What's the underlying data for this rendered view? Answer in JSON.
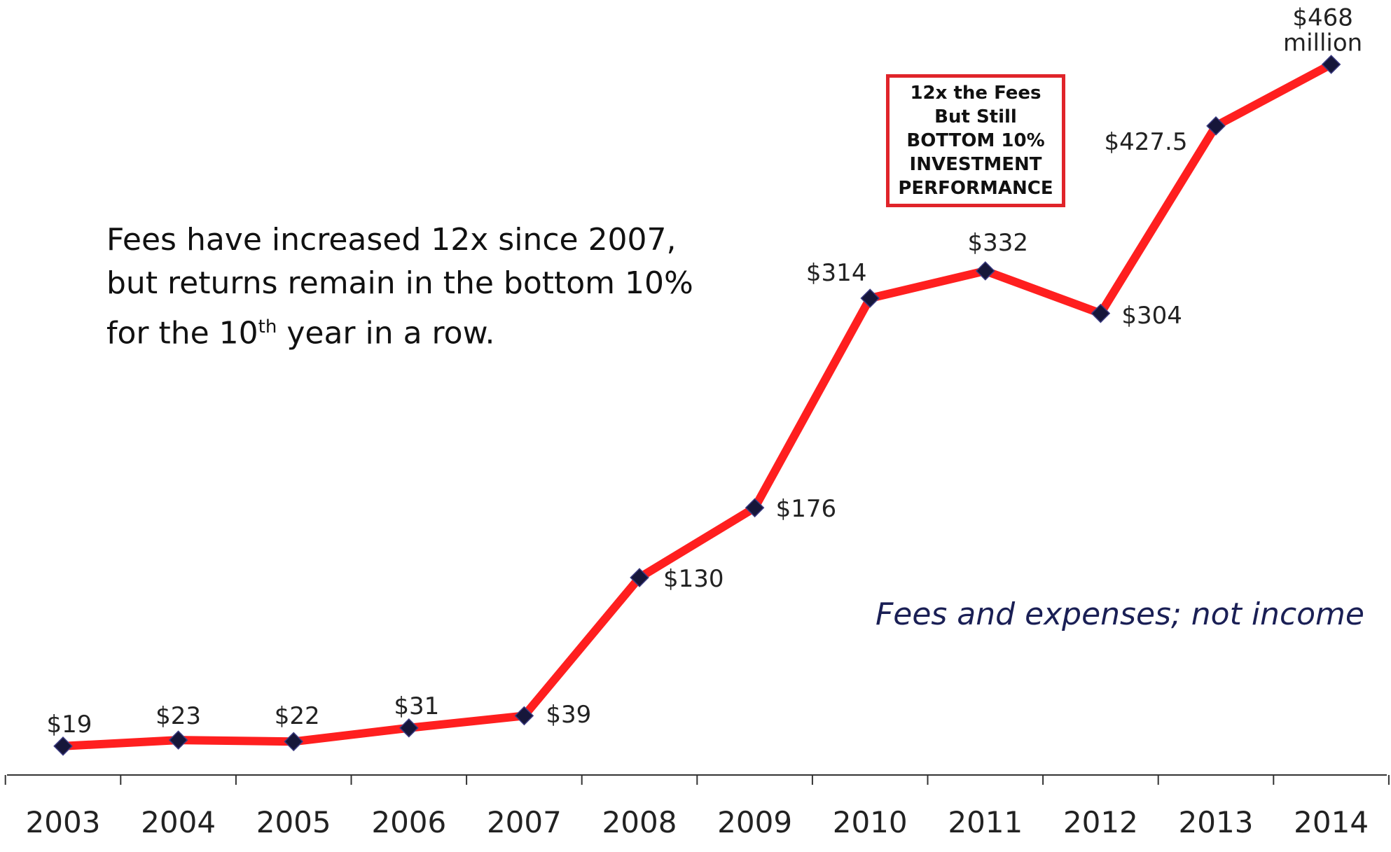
{
  "chart_data": {
    "type": "line",
    "categories": [
      "2003",
      "2004",
      "2005",
      "2006",
      "2007",
      "2008",
      "2009",
      "2010",
      "2011",
      "2012",
      "2013",
      "2014"
    ],
    "series": [
      {
        "name": "Fees",
        "color": "#ff1f1f",
        "marker_color": "#16163a",
        "values": [
          19,
          23,
          22,
          31,
          39,
          130,
          176,
          314,
          332,
          304,
          427.5,
          468
        ],
        "value_labels": [
          "$19",
          "$23",
          "$22",
          "$31",
          "$39",
          "$130",
          "$176",
          "$314",
          "$332",
          "$304",
          "$427.5",
          "$468 million"
        ]
      }
    ],
    "annotation": {
      "line1": "Fees have increased 12x since 2007,",
      "line2": "but returns remain in the bottom 10%",
      "line3_start": "for the 10",
      "line3_sup": "th",
      "line3_end": " year in a row."
    },
    "callout": [
      "12x the Fees",
      "But Still",
      "BOTTOM 10%",
      "INVESTMENT",
      "PERFORMANCE"
    ],
    "note": "Fees and expenses; not income"
  }
}
